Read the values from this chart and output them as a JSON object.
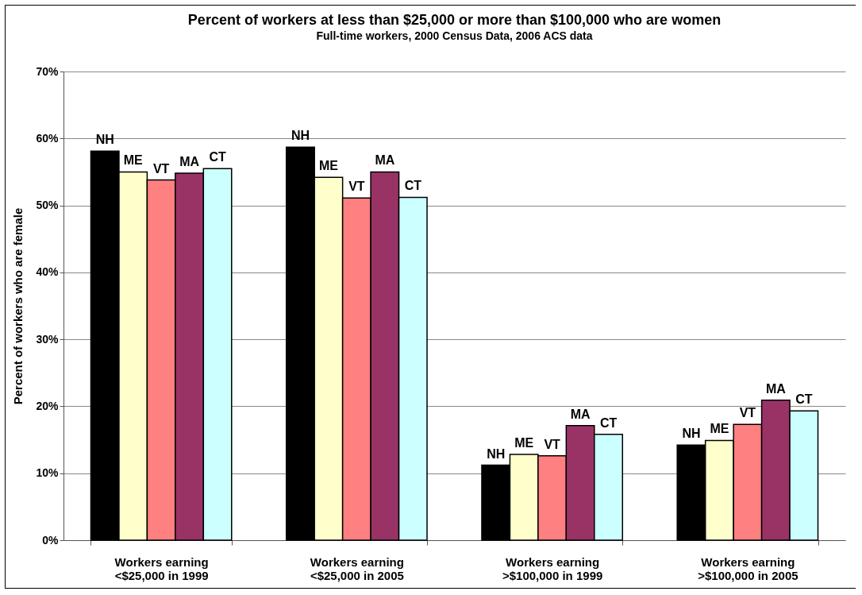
{
  "chart_data": {
    "type": "bar",
    "title": "Percent of workers at less than $25,000 or more than $100,000 who are women",
    "subtitle": "Full-time workers, 2000 Census Data, 2006 ACS data",
    "ylabel": "Percent of workers who are female",
    "categories": [
      "Workers earning <$25,000 in 1999",
      "Workers earning <$25,000 in 2005",
      "Workers earning >$100,000 in 1999",
      "Workers earning >$100,000 in 2005"
    ],
    "series": [
      {
        "name": "NH",
        "color": "#000000",
        "values": [
          58.1,
          58.7,
          11.2,
          14.2
        ]
      },
      {
        "name": "ME",
        "color": "#ffffcc",
        "values": [
          55.0,
          54.2,
          12.8,
          14.9
        ]
      },
      {
        "name": "VT",
        "color": "#ff8080",
        "values": [
          53.8,
          51.1,
          12.6,
          17.3
        ]
      },
      {
        "name": "MA",
        "color": "#993366",
        "values": [
          54.8,
          55.0,
          17.1,
          20.9
        ]
      },
      {
        "name": "CT",
        "color": "#ccffff",
        "values": [
          55.5,
          51.2,
          15.8,
          19.3
        ]
      }
    ],
    "ylim": [
      0,
      70
    ],
    "yticks": [
      {
        "value": 0,
        "label": "0%"
      },
      {
        "value": 10,
        "label": "10%"
      },
      {
        "value": 20,
        "label": "20%"
      },
      {
        "value": 30,
        "label": "30%"
      },
      {
        "value": 40,
        "label": "40%"
      },
      {
        "value": 50,
        "label": "50%"
      },
      {
        "value": 60,
        "label": "60%"
      },
      {
        "value": 70,
        "label": "70%"
      }
    ],
    "grid": "y",
    "legend": false
  }
}
